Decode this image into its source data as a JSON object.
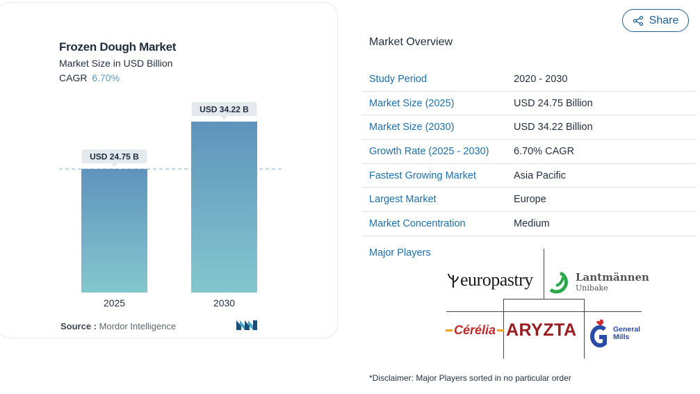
{
  "chart": {
    "title": "Frozen Dough Market",
    "subtitle": "Market Size in USD Billion",
    "cagr_label": "CAGR",
    "cagr_value": "6.70%",
    "source_label": "Source :",
    "source_value": "Mordor Intelligence"
  },
  "chart_data": {
    "type": "bar",
    "categories": [
      "2025",
      "2030"
    ],
    "values": [
      24.75,
      34.22
    ],
    "data_labels": [
      "USD 24.75 B",
      "USD 34.22 B"
    ],
    "title": "Frozen Dough Market",
    "ylabel": "Market Size in USD Billion",
    "ylim": [
      0,
      34.22
    ],
    "reference_line_value": 24.75,
    "bar_color_top": "#5f93bd",
    "bar_color_bottom": "#84c7cd",
    "grid": false
  },
  "share": {
    "label": "Share"
  },
  "overview": {
    "title": "Market Overview",
    "rows": [
      {
        "label": "Study Period",
        "value": "2020 - 2030"
      },
      {
        "label": "Market Size (2025)",
        "value": "USD 24.75 Billion"
      },
      {
        "label": "Market Size (2030)",
        "value": "USD 34.22 Billion"
      },
      {
        "label": "Growth Rate (2025 - 2030)",
        "value": "6.70% CAGR"
      },
      {
        "label": "Fastest Growing Market",
        "value": "Asia Pacific"
      },
      {
        "label": "Largest Market",
        "value": "Europe"
      },
      {
        "label": "Market Concentration",
        "value": "Medium"
      }
    ]
  },
  "players": {
    "title": "Major Players",
    "europastry": "europastry",
    "lantmannen_1": "Lantmännen",
    "lantmannen_2": "Unibake",
    "cerelia": "Cérélia",
    "aryzta": "ARYZTA",
    "general_mills_1": "General",
    "general_mills_2": "Mills"
  },
  "disclaimer": "*Disclaimer: Major Players sorted in no particular order",
  "colors": {
    "accent_blue": "#1b6fae",
    "share_border": "#1b5e94",
    "cagr_value": "#5d97c4"
  }
}
